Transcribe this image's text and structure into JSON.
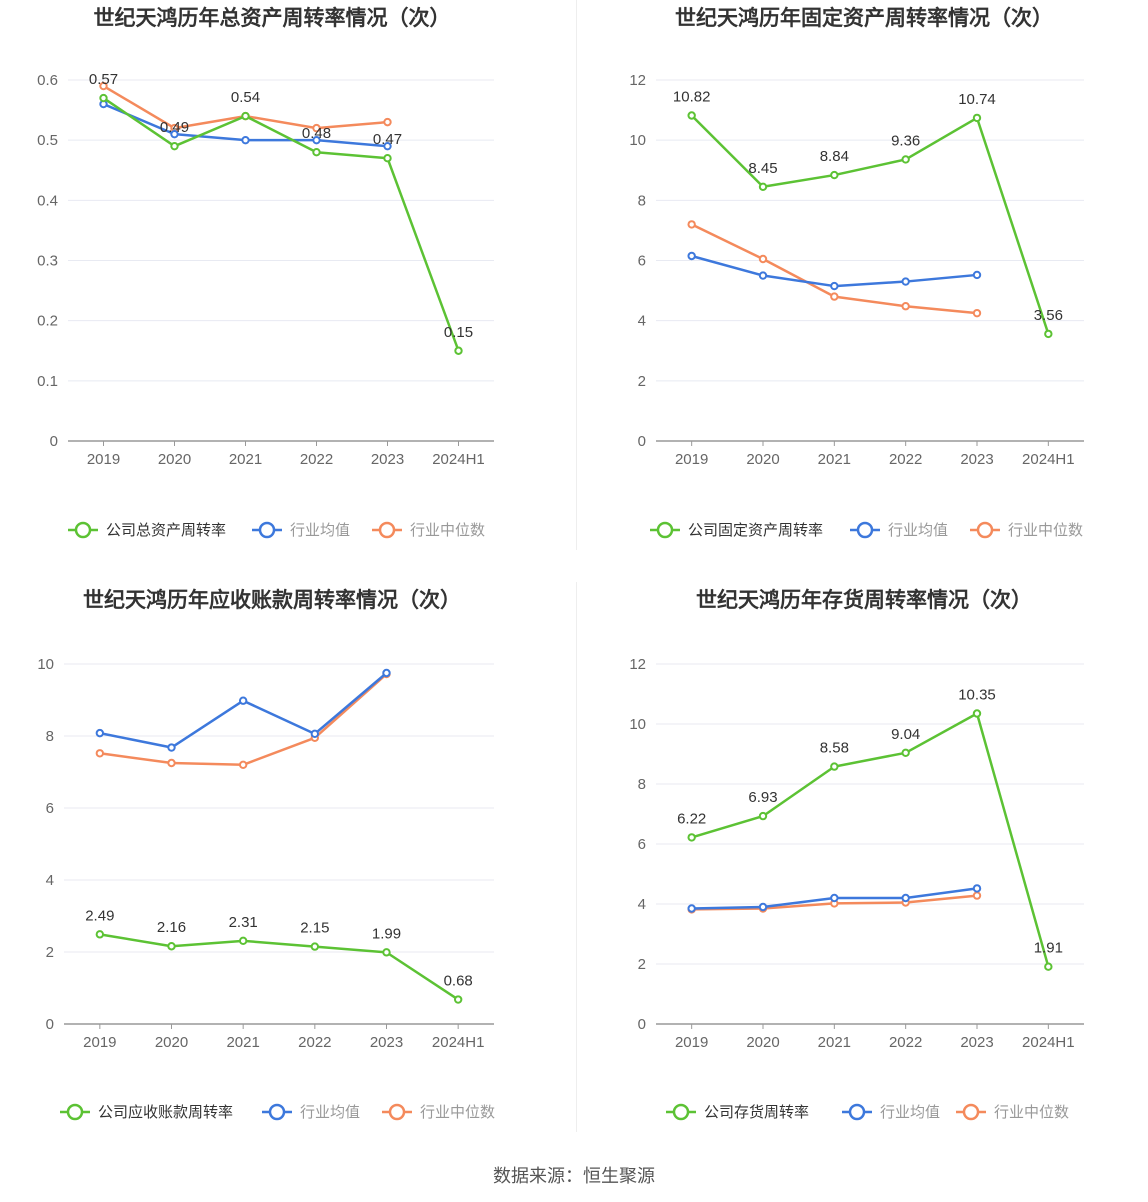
{
  "footer": {
    "source": "数据来源：恒生聚源"
  },
  "colors": {
    "company": "#5cc234",
    "avg": "#3d78dc",
    "median": "#f48a5c",
    "grid": "#e8eaf2",
    "axis": "#999999"
  },
  "chart_data": [
    {
      "type": "line",
      "title": "世纪天鸿历年总资产周转率情况（次）",
      "categories": [
        "2019",
        "2020",
        "2021",
        "2022",
        "2023",
        "2024H1"
      ],
      "ylim": [
        0,
        0.6
      ],
      "yticks": [
        "0",
        "0.1",
        "0.2",
        "0.3",
        "0.4",
        "0.5",
        "0.6"
      ],
      "legend_position": "bottom",
      "series": [
        {
          "name": "公司总资产周转率",
          "role": "company",
          "values": [
            0.57,
            0.49,
            0.54,
            0.48,
            0.47,
            0.15
          ],
          "labels": [
            "0.57",
            "0.49",
            "0.54",
            "0.48",
            "0.47",
            "0.15"
          ]
        },
        {
          "name": "行业均值",
          "role": "avg",
          "values": [
            0.56,
            0.51,
            0.5,
            0.5,
            0.49,
            null
          ]
        },
        {
          "name": "行业中位数",
          "role": "median",
          "values": [
            0.59,
            0.52,
            0.54,
            0.52,
            0.53,
            null
          ]
        }
      ]
    },
    {
      "type": "line",
      "title": "世纪天鸿历年固定资产周转率情况（次）",
      "categories": [
        "2019",
        "2020",
        "2021",
        "2022",
        "2023",
        "2024H1"
      ],
      "ylim": [
        0,
        12
      ],
      "yticks": [
        "0",
        "2",
        "4",
        "6",
        "8",
        "10",
        "12"
      ],
      "legend_position": "bottom",
      "series": [
        {
          "name": "公司固定资产周转率",
          "role": "company",
          "values": [
            10.82,
            8.45,
            8.84,
            9.36,
            10.74,
            3.56
          ],
          "labels": [
            "10.82",
            "8.45",
            "8.84",
            "9.36",
            "10.74",
            "3.56"
          ]
        },
        {
          "name": "行业均值",
          "role": "avg",
          "values": [
            6.15,
            5.5,
            5.15,
            5.3,
            5.52,
            null
          ]
        },
        {
          "name": "行业中位数",
          "role": "median",
          "values": [
            7.2,
            6.05,
            4.8,
            4.48,
            4.25,
            null
          ]
        }
      ]
    },
    {
      "type": "line",
      "title": "世纪天鸿历年应收账款周转率情况（次）",
      "categories": [
        "2019",
        "2020",
        "2021",
        "2022",
        "2023",
        "2024H1"
      ],
      "ylim": [
        0,
        10
      ],
      "yticks": [
        "0",
        "2",
        "4",
        "6",
        "8",
        "10"
      ],
      "legend_position": "bottom",
      "series": [
        {
          "name": "公司应收账款周转率",
          "role": "company",
          "values": [
            2.49,
            2.16,
            2.31,
            2.15,
            1.99,
            0.68
          ],
          "labels": [
            "2.49",
            "2.16",
            "2.31",
            "2.15",
            "1.99",
            "0.68"
          ]
        },
        {
          "name": "行业均值",
          "role": "avg",
          "values": [
            8.08,
            7.68,
            8.98,
            8.06,
            9.75,
            null
          ]
        },
        {
          "name": "行业中位数",
          "role": "median",
          "values": [
            7.52,
            7.25,
            7.2,
            7.95,
            9.72,
            null
          ]
        }
      ]
    },
    {
      "type": "line",
      "title": "世纪天鸿历年存货周转率情况（次）",
      "categories": [
        "2019",
        "2020",
        "2021",
        "2022",
        "2023",
        "2024H1"
      ],
      "ylim": [
        0,
        12
      ],
      "yticks": [
        "0",
        "2",
        "4",
        "6",
        "8",
        "10",
        "12"
      ],
      "legend_position": "bottom",
      "series": [
        {
          "name": "公司存货周转率",
          "role": "company",
          "values": [
            6.22,
            6.93,
            8.58,
            9.04,
            10.35,
            1.91
          ],
          "labels": [
            "6.22",
            "6.93",
            "8.58",
            "9.04",
            "10.35",
            "1.91"
          ]
        },
        {
          "name": "行业均值",
          "role": "avg",
          "values": [
            3.85,
            3.9,
            4.2,
            4.2,
            4.52,
            null
          ]
        },
        {
          "name": "行业中位数",
          "role": "median",
          "values": [
            3.82,
            3.85,
            4.02,
            4.05,
            4.28,
            null
          ]
        }
      ]
    }
  ]
}
